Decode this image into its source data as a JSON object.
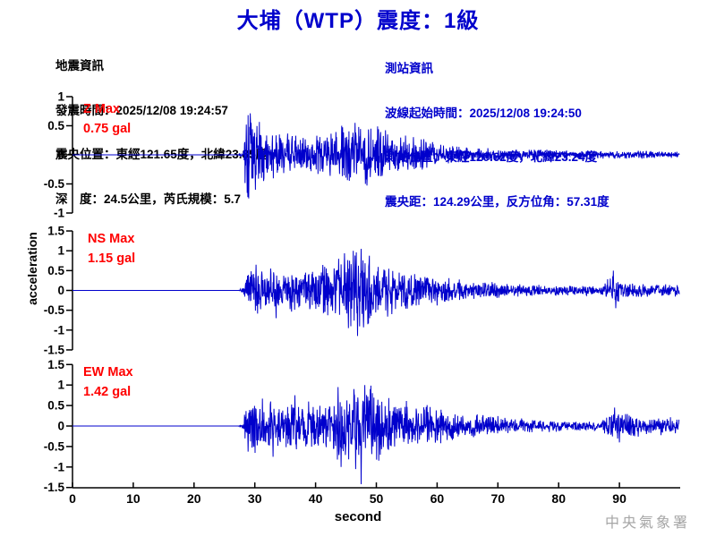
{
  "header": {
    "title": "大埔（WTP）震度：1級",
    "color": "#0000CC"
  },
  "quake_info": {
    "heading": "地震資訊",
    "lines": [
      "發震時間：2025/12/08 19:24:57",
      "震央位置：東經121.65度，北緯23.85度",
      "深　度：24.5公里，芮氏規模：5.7"
    ],
    "color": "#000000"
  },
  "station_info": {
    "heading": "測站資訊",
    "lines": [
      "波線起始時間：2025/12/08 19:24:50",
      "測站位置：東經120.62度，北緯23.24度",
      "震央距：124.29公里，反方位角：57.31度"
    ],
    "color": "#0000CC"
  },
  "watermark": {
    "text": "中央氣象署",
    "color": "#A6A6A6"
  },
  "chart_data": {
    "type": "line",
    "xlabel": "second",
    "ylabel": "acceleration",
    "x_range": [
      0,
      100
    ],
    "x_ticks": [
      0,
      10,
      20,
      30,
      40,
      50,
      60,
      70,
      80,
      90
    ],
    "grid": false,
    "legend": "none",
    "trace_color": "#0000CC",
    "axis_color": "#000000",
    "max_label_color": "#FF0000",
    "signal_start_s": 28,
    "series": [
      {
        "name": "Z",
        "max_label": "Z Max",
        "max_value": "0.75 gal",
        "max_gal": 0.75,
        "peak_time_s": 29.0,
        "ylim": [
          -1,
          1
        ],
        "y_ticks": [
          1,
          0.5,
          0,
          -0.5,
          -1
        ],
        "seed": 11,
        "envelope": [
          [
            0,
            0
          ],
          [
            27.3,
            0
          ],
          [
            27.6,
            0.03
          ],
          [
            28.1,
            0.05
          ],
          [
            28.35,
            0.55
          ],
          [
            28.8,
            0.7
          ],
          [
            29.8,
            0.6
          ],
          [
            31,
            0.45
          ],
          [
            33,
            0.33
          ],
          [
            36,
            0.3
          ],
          [
            39,
            0.28
          ],
          [
            42,
            0.32
          ],
          [
            45,
            0.4
          ],
          [
            47,
            0.42
          ],
          [
            50,
            0.42
          ],
          [
            53,
            0.35
          ],
          [
            56,
            0.28
          ],
          [
            60,
            0.18
          ],
          [
            64,
            0.13
          ],
          [
            68,
            0.1
          ],
          [
            75,
            0.08
          ],
          [
            85,
            0.06
          ],
          [
            100,
            0.05
          ]
        ],
        "spikes": [
          [
            29.0,
            -0.75
          ],
          [
            28.6,
            0.52
          ],
          [
            29.4,
            0.55
          ],
          [
            30.1,
            -0.6
          ],
          [
            44.3,
            0.5
          ],
          [
            46.5,
            0.55
          ],
          [
            48.2,
            -0.5
          ]
        ]
      },
      {
        "name": "NS",
        "max_label": "NS Max",
        "max_value": "1.15 gal",
        "max_gal": 1.15,
        "peak_time_s": 46.9,
        "ylim": [
          -1.5,
          1.5
        ],
        "y_ticks": [
          1.5,
          1,
          0.5,
          0,
          -0.5,
          -1,
          -1.5
        ],
        "seed": 22,
        "envelope": [
          [
            0,
            0
          ],
          [
            27.3,
            0
          ],
          [
            27.6,
            0.03
          ],
          [
            28.1,
            0.06
          ],
          [
            28.4,
            0.4
          ],
          [
            29,
            0.55
          ],
          [
            31,
            0.5
          ],
          [
            33,
            0.45
          ],
          [
            35,
            0.42
          ],
          [
            38,
            0.45
          ],
          [
            41,
            0.5
          ],
          [
            43,
            0.6
          ],
          [
            45,
            0.8
          ],
          [
            46.5,
            0.95
          ],
          [
            48,
            0.9
          ],
          [
            50,
            0.7
          ],
          [
            52,
            0.55
          ],
          [
            54,
            0.45
          ],
          [
            57,
            0.35
          ],
          [
            60,
            0.3
          ],
          [
            63,
            0.25
          ],
          [
            67,
            0.2
          ],
          [
            72,
            0.15
          ],
          [
            78,
            0.12
          ],
          [
            84,
            0.1
          ],
          [
            87,
            0.1
          ],
          [
            88.5,
            0.28
          ],
          [
            89.5,
            0.3
          ],
          [
            91,
            0.18
          ],
          [
            94,
            0.15
          ],
          [
            100,
            0.14
          ]
        ],
        "spikes": [
          [
            46.9,
            -1.15
          ],
          [
            47.5,
            1.05
          ],
          [
            46.2,
            1.0
          ],
          [
            45.4,
            -0.95
          ],
          [
            48.6,
            -0.85
          ],
          [
            43.8,
            0.8
          ],
          [
            33.5,
            -0.7
          ],
          [
            30.2,
            0.65
          ],
          [
            89.0,
            0.5
          ],
          [
            89.4,
            -0.45
          ]
        ]
      },
      {
        "name": "EW",
        "max_label": "EW Max",
        "max_value": "1.42 gal",
        "max_gal": 1.42,
        "peak_time_s": 47.5,
        "ylim": [
          -1.5,
          1.5
        ],
        "y_ticks": [
          1.5,
          1,
          0.5,
          0,
          -0.5,
          -1,
          -1.5
        ],
        "seed": 33,
        "envelope": [
          [
            0,
            0
          ],
          [
            27.3,
            0
          ],
          [
            27.6,
            0.04
          ],
          [
            28.1,
            0.08
          ],
          [
            28.4,
            0.45
          ],
          [
            29,
            0.6
          ],
          [
            31,
            0.55
          ],
          [
            33,
            0.5
          ],
          [
            35,
            0.48
          ],
          [
            38,
            0.5
          ],
          [
            40,
            0.5
          ],
          [
            42,
            0.55
          ],
          [
            43.5,
            0.75
          ],
          [
            45,
            0.7
          ],
          [
            46.5,
            0.9
          ],
          [
            48,
            0.95
          ],
          [
            49.5,
            0.8
          ],
          [
            51,
            0.7
          ],
          [
            53,
            0.6
          ],
          [
            55,
            0.5
          ],
          [
            58,
            0.42
          ],
          [
            61,
            0.35
          ],
          [
            64,
            0.28
          ],
          [
            68,
            0.22
          ],
          [
            72,
            0.17
          ],
          [
            76,
            0.13
          ],
          [
            80,
            0.11
          ],
          [
            84,
            0.1
          ],
          [
            87,
            0.1
          ],
          [
            88.5,
            0.3
          ],
          [
            90,
            0.32
          ],
          [
            91.5,
            0.25
          ],
          [
            93,
            0.2
          ],
          [
            96,
            0.18
          ],
          [
            100,
            0.17
          ]
        ],
        "spikes": [
          [
            47.5,
            -1.42
          ],
          [
            43.7,
            0.95
          ],
          [
            44.2,
            -1.0
          ],
          [
            48.1,
            1.0
          ],
          [
            46.6,
            -1.05
          ],
          [
            49.0,
            0.9
          ],
          [
            36.6,
            0.75
          ],
          [
            33.0,
            -0.75
          ],
          [
            89.2,
            0.45
          ],
          [
            90.0,
            -0.4
          ]
        ]
      }
    ]
  }
}
